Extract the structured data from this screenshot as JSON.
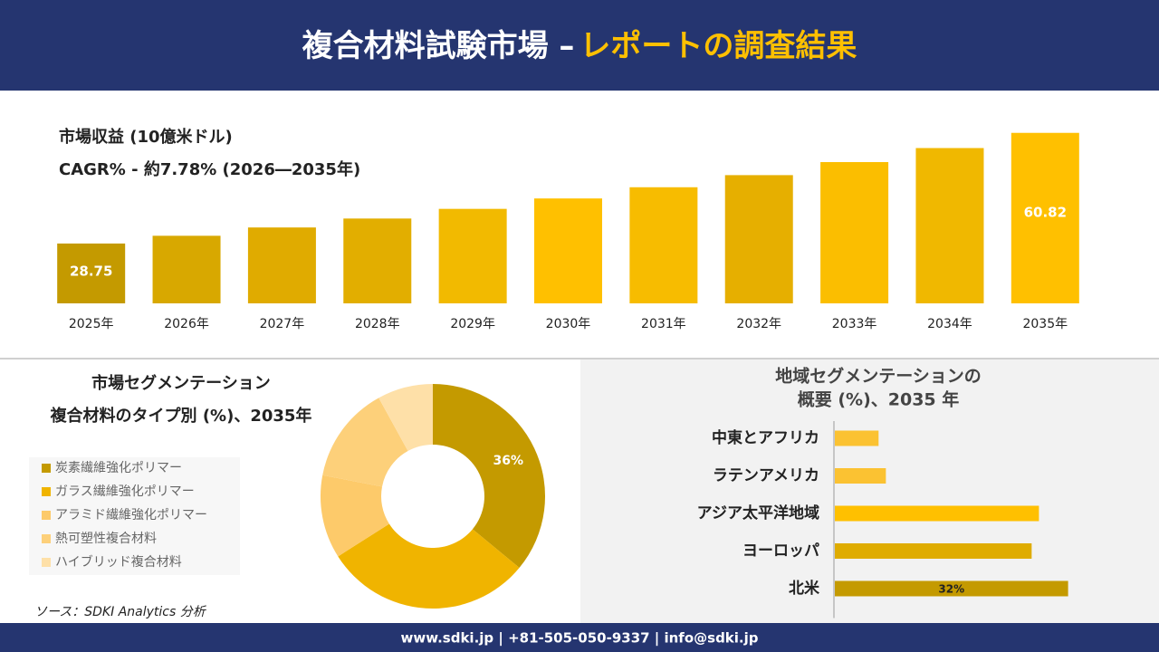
{
  "header": {
    "title_main": "複合材料試験市場 –",
    "title_accent": "レポートの調査結果"
  },
  "chart_data": [
    {
      "type": "bar",
      "title": "市場収益 (10億米ドル)",
      "subtitle": "CAGR% - 約7.78% (2026―2035年)",
      "categories": [
        "2025年",
        "2026年",
        "2027年",
        "2028年",
        "2029年",
        "2030年",
        "2031年",
        "2032年",
        "2033年",
        "2034年",
        "2035年"
      ],
      "values": [
        28.75,
        30.99,
        33.4,
        35.99,
        38.79,
        41.81,
        45.06,
        48.57,
        52.35,
        56.42,
        60.82
      ],
      "value_labels": [
        "28.75",
        null,
        null,
        null,
        null,
        null,
        null,
        null,
        null,
        null,
        "60.82"
      ],
      "colors": [
        "#c49a00",
        "#d8a800",
        "#e0ab00",
        "#e2ae00",
        "#f2ba00",
        "#ffc000",
        "#f7bc00",
        "#e6af00",
        "#fbbe00",
        "#f0b800",
        "#ffc000"
      ],
      "ylim": [
        11.4,
        66
      ]
    },
    {
      "type": "pie",
      "title": "市場セグメンテーション",
      "subtitle": "複合材料のタイプ別 (%)、2035年",
      "categories": [
        "炭素繊維強化ポリマー",
        "ガラス繊維強化ポリマー",
        "アラミド繊維強化ポリマー",
        "熱可塑性複合材料",
        "ハイブリッド複合材料"
      ],
      "values": [
        36,
        30,
        12,
        14,
        8
      ],
      "value_labels": [
        "36%",
        null,
        null,
        null,
        null
      ],
      "colors": [
        "#c49a00",
        "#f0b400",
        "#fdca6a",
        "#fdd07a",
        "#fee0a8"
      ]
    },
    {
      "type": "barh",
      "title": "地域セグメンテーションの",
      "subtitle": "概要 (%)、2035 年",
      "categories": [
        "中東とアフリカ",
        "ラテンアメリカ",
        "アジア太平洋地域",
        "ヨーロッパ",
        "北米"
      ],
      "values": [
        6,
        7,
        28,
        27,
        32
      ],
      "value_labels": [
        null,
        null,
        null,
        null,
        "32%"
      ],
      "colors": [
        "#fbc232",
        "#fbc232",
        "#ffc000",
        "#dfac00",
        "#c49a00"
      ],
      "xlim": [
        0,
        40
      ]
    }
  ],
  "source": "ソース：SDKI Analytics 分析",
  "footer": "www.sdki.jp | +81-505-050-9337 | info@sdki.jp"
}
